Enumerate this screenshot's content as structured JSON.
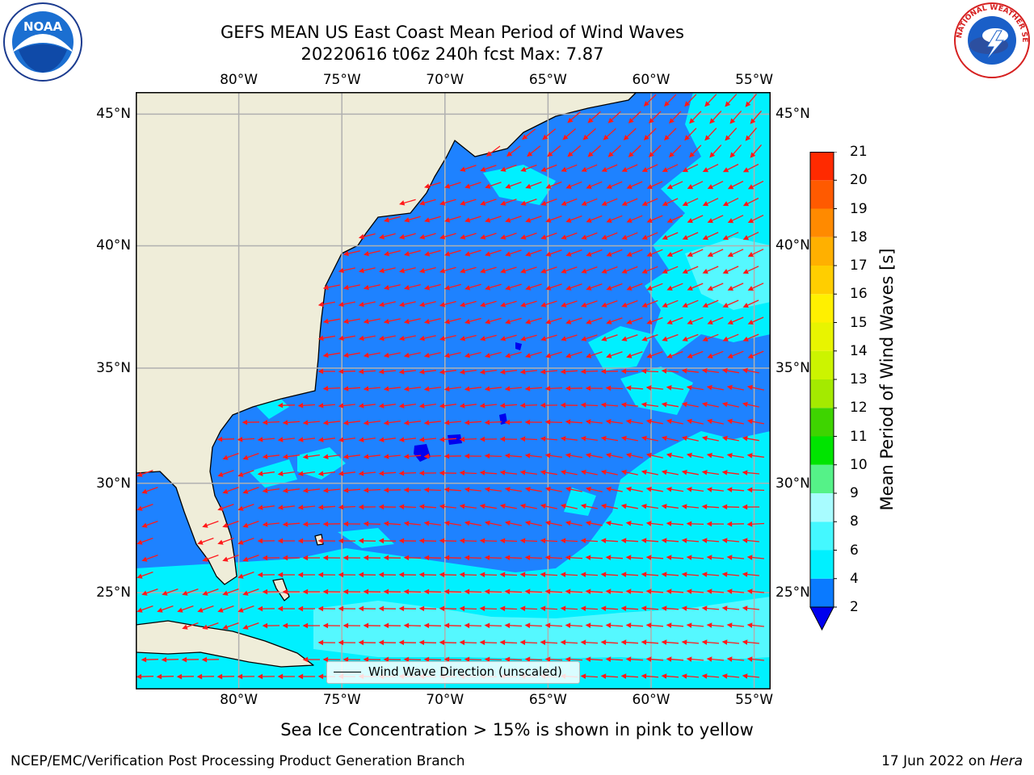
{
  "title_line1": "GEFS MEAN US East Coast Mean Period of Wind Waves",
  "title_line2": "20220616 t06z 240h fcst   Max: 7.87",
  "map": {
    "lon_ticks": [
      "80°W",
      "75°W",
      "70°W",
      "65°W",
      "60°W",
      "55°W"
    ],
    "lat_ticks": [
      "45°N",
      "40°N",
      "35°N",
      "30°N",
      "25°N"
    ],
    "extent": {
      "lon_min": -85,
      "lon_max": -54.2,
      "lat_min": 20.4,
      "lat_max": 45.8
    },
    "colors": {
      "land": "#efedd9",
      "ocean_2_4": "#1e82ff",
      "ocean_4_6": "#00f0ff",
      "ocean_6_8": "#55f8ff",
      "ocean_below_2": "#0000ee",
      "arrow": "#ff1a1a",
      "grid": "#b0b0b0"
    }
  },
  "legend": {
    "label": "Wind Wave Direction (unscaled)"
  },
  "colorbar": {
    "label": "Mean Period of Wind Waves [s]",
    "ticks": [
      "21",
      "20",
      "19",
      "18",
      "17",
      "16",
      "15",
      "14",
      "13",
      "12",
      "11",
      "10",
      "9",
      "8",
      "6",
      "4",
      "2"
    ],
    "boundaries": [
      2,
      4,
      6,
      8,
      9,
      10,
      11,
      12,
      13,
      14,
      15,
      16,
      17,
      18,
      19,
      20,
      21
    ],
    "colors": [
      "#0a7aff",
      "#00f0ff",
      "#44f8ff",
      "#a8fcff",
      "#55f288",
      "#00e400",
      "#3ed400",
      "#a4ea00",
      "#ccf400",
      "#e8f400",
      "#fff000",
      "#ffce00",
      "#ffb000",
      "#ff8a00",
      "#ff5a00",
      "#ff2a00"
    ],
    "extend_color": "#0000ee"
  },
  "note": "Sea Ice Concentration > 15% is shown in pink to yellow",
  "footer": {
    "left": "NCEP/EMC/Verification Post Processing Product Generation Branch",
    "right_date": "17 Jun 2022 on",
    "right_host": "Hera"
  },
  "logos": {
    "noaa_text": "NOAA",
    "nws_text": "NATIONAL WEATHER SERVICE"
  }
}
